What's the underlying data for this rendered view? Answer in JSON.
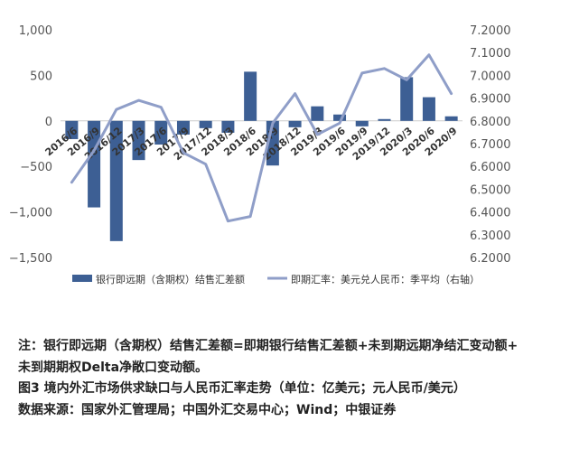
{
  "chart_data": {
    "type": "bar+line",
    "categories": [
      "2016/6",
      "2016/9",
      "2016/12",
      "2017/3",
      "2017/6",
      "2017/9",
      "2017/12",
      "2018/3",
      "2018/6",
      "2018/9",
      "2018/12",
      "2019/3",
      "2019/6",
      "2019/9",
      "2019/12",
      "2020/3",
      "2020/6",
      "2020/9"
    ],
    "series": [
      {
        "name": "银行即远期（含期权）结售汇差额",
        "type": "bar",
        "axis": "left",
        "color": "#3d5f94",
        "values": [
          -200,
          -950,
          -1320,
          -430,
          -260,
          -150,
          -80,
          -130,
          540,
          -490,
          -70,
          160,
          70,
          -60,
          20,
          480,
          260,
          50
        ]
      },
      {
        "name": "即期汇率：美元兑人民币：季平均（右轴）",
        "type": "line",
        "axis": "right",
        "color": "#8f9ec8",
        "values": [
          6.53,
          6.67,
          6.85,
          6.89,
          6.86,
          6.66,
          6.61,
          6.36,
          6.38,
          6.79,
          6.92,
          6.74,
          6.79,
          7.01,
          7.03,
          6.98,
          7.09,
          6.92
        ]
      }
    ],
    "left_axis": {
      "ylim": [
        -1500,
        1000
      ],
      "ticks": [
        1000,
        500,
        0,
        -500,
        -1000,
        -1500
      ],
      "tick_labels": [
        "1,000",
        "500",
        "0",
        "−500",
        "−1,000",
        "−1,500"
      ]
    },
    "right_axis": {
      "ylim": [
        6.2,
        7.2
      ],
      "ticks": [
        7.2,
        7.1,
        7.0,
        6.9,
        6.8,
        6.7,
        6.6,
        6.5,
        6.4,
        6.3,
        6.2
      ],
      "tick_labels": [
        "7.2000",
        "7.1000",
        "7.0000",
        "6.9000",
        "6.8000",
        "6.7000",
        "6.6000",
        "6.5000",
        "6.4000",
        "6.3000",
        "6.2000"
      ]
    },
    "grid": false,
    "legend_position": "bottom"
  },
  "notes": {
    "note_line_1": "注：银行即远期（含期权）结售汇差额=即期银行结售汇差额+未到期远期净结汇变动额+",
    "note_line_2": "未到期期权Delta净敞口变动额。",
    "figure_caption": "图3  境内外汇市场供求缺口与人民币汇率走势（单位：亿美元；元人民币/美元）",
    "source": "数据来源：国家外汇管理局；中国外汇交易中心；Wind；中银证券"
  }
}
